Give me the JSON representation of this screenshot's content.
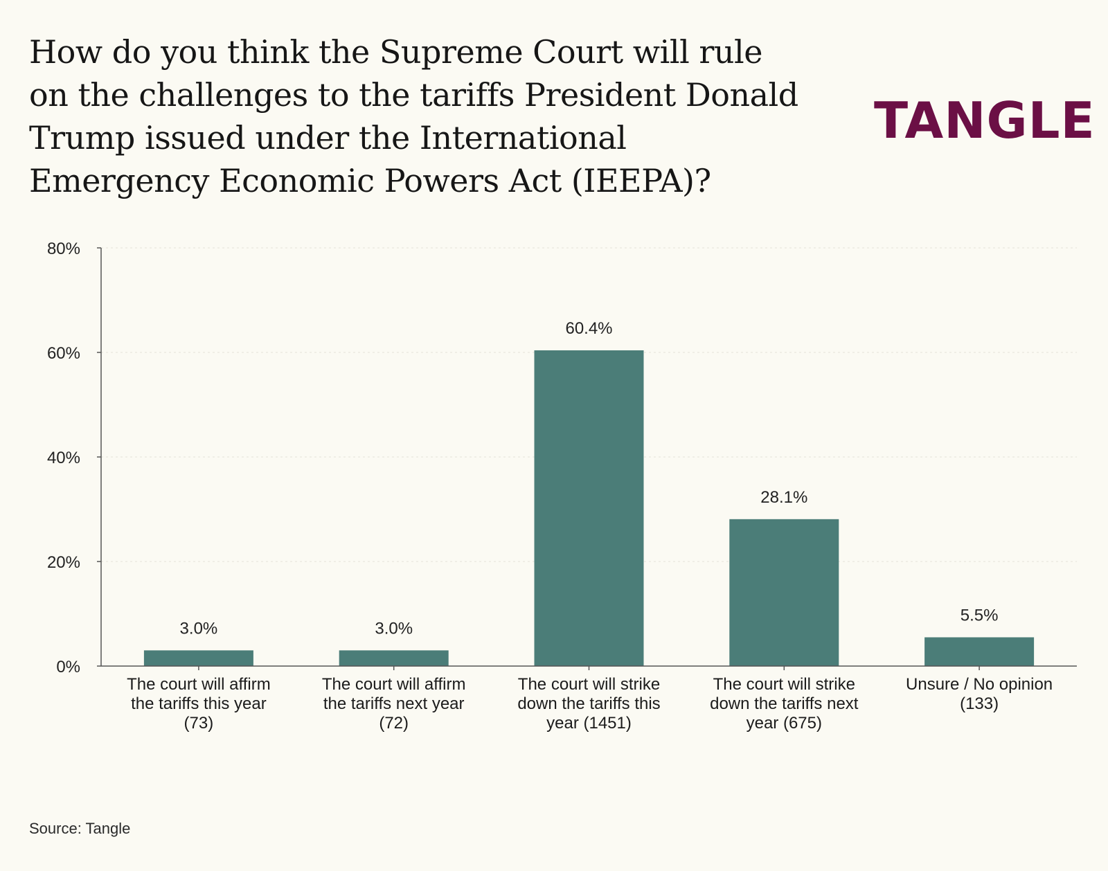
{
  "brand": {
    "logo_text": "TANGLE",
    "color": "#6b0f45"
  },
  "source": "Source: Tangle",
  "chart_data": {
    "type": "bar",
    "title": "How do you think the Supreme Court will rule on the challenges to the tariffs President Donald Trump issued under the International Emergency Economic Powers Act (IEEPA)?",
    "categories": [
      [
        "The court will affirm",
        "the tariffs this year",
        "(73)"
      ],
      [
        "The court will affirm",
        "the tariffs next year",
        "(72)"
      ],
      [
        "The court will strike",
        "down the tariffs this",
        "year (1451)"
      ],
      [
        "The court will strike",
        "down the tariffs next",
        "year (675)"
      ],
      [
        "Unsure / No opinion",
        "(133)"
      ]
    ],
    "values": [
      3.0,
      3.0,
      60.4,
      28.1,
      5.5
    ],
    "value_labels": [
      "3.0%",
      "3.0%",
      "60.4%",
      "28.1%",
      "5.5%"
    ],
    "y_ticks": [
      0,
      20,
      40,
      60,
      80
    ],
    "y_tick_labels": [
      "0%",
      "20%",
      "40%",
      "60%",
      "80%"
    ],
    "ylim": [
      0,
      80
    ],
    "grid": true,
    "bar_color": "#4b7d78"
  }
}
